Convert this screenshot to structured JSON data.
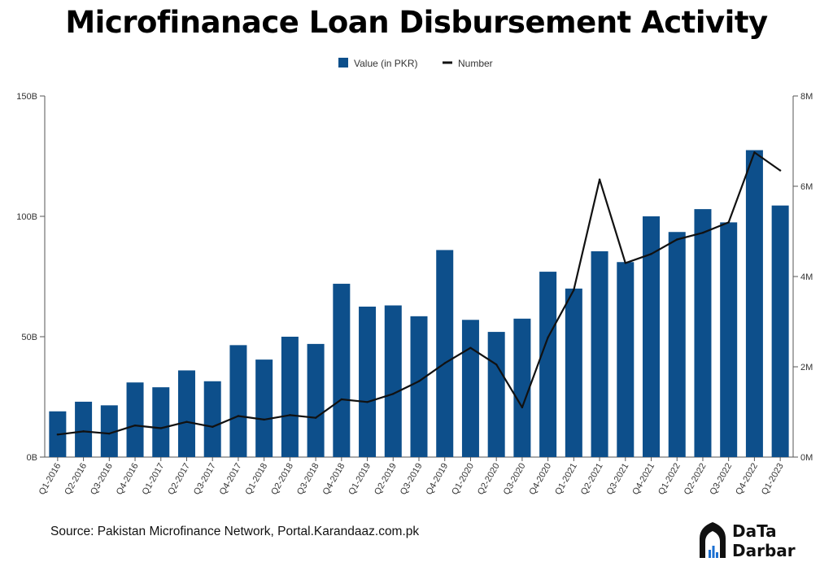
{
  "chart_data": {
    "type": "bar",
    "title": "Microfinanace Loan Disbursement Activity",
    "categories": [
      "Q1-2016",
      "Q2-2016",
      "Q3-2016",
      "Q4-2016",
      "Q1-2017",
      "Q2-2017",
      "Q3-2017",
      "Q4-2017",
      "Q1-2018",
      "Q2-2018",
      "Q3-2018",
      "Q4-2018",
      "Q1-2019",
      "Q2-2019",
      "Q3-2019",
      "Q4-2019",
      "Q1-2020",
      "Q2-2020",
      "Q3-2020",
      "Q4-2020",
      "Q1-2021",
      "Q2-2021",
      "Q3-2021",
      "Q4-2021",
      "Q1-2022",
      "Q2-2022",
      "Q3-2022",
      "Q4-2022",
      "Q1-2023"
    ],
    "series": [
      {
        "name": "Value (in PKR)",
        "type": "bar",
        "axis": "left",
        "color": "#0d4f8b",
        "values": [
          19,
          23,
          21.5,
          31,
          29,
          36,
          31.5,
          46.5,
          40.5,
          50,
          47,
          72,
          62.5,
          63,
          58.5,
          86,
          57,
          52,
          57.5,
          77,
          70,
          85.5,
          81,
          100,
          93.5,
          103,
          97.5,
          127.5,
          104.5
        ]
      },
      {
        "name": "Number",
        "type": "line",
        "axis": "right",
        "color": "#111111",
        "values": [
          0.5,
          0.57,
          0.52,
          0.7,
          0.64,
          0.78,
          0.67,
          0.91,
          0.83,
          0.93,
          0.87,
          1.28,
          1.22,
          1.4,
          1.68,
          2.08,
          2.42,
          2.05,
          1.1,
          2.65,
          3.7,
          6.15,
          4.3,
          4.5,
          4.82,
          4.97,
          5.2,
          6.75,
          6.35
        ]
      }
    ],
    "y_left": {
      "lim": [
        0,
        150
      ],
      "ticks": [
        0,
        50,
        100,
        150
      ],
      "tick_labels": [
        "0B",
        "50B",
        "100B",
        "150B"
      ]
    },
    "y_right": {
      "lim": [
        0,
        8
      ],
      "ticks": [
        0,
        2,
        4,
        6,
        8
      ],
      "tick_labels": [
        "0M",
        "2M",
        "4M",
        "6M",
        "8M"
      ]
    },
    "xlabel": "",
    "ylabel": "",
    "grid": false,
    "legend_position": "top-center"
  },
  "footer": {
    "source": "Source: Pakistan Microfinance Network, Portal.Karandaaz.com.pk"
  },
  "logo": {
    "text_top": "DaTa",
    "text_bottom": "Darbar"
  }
}
